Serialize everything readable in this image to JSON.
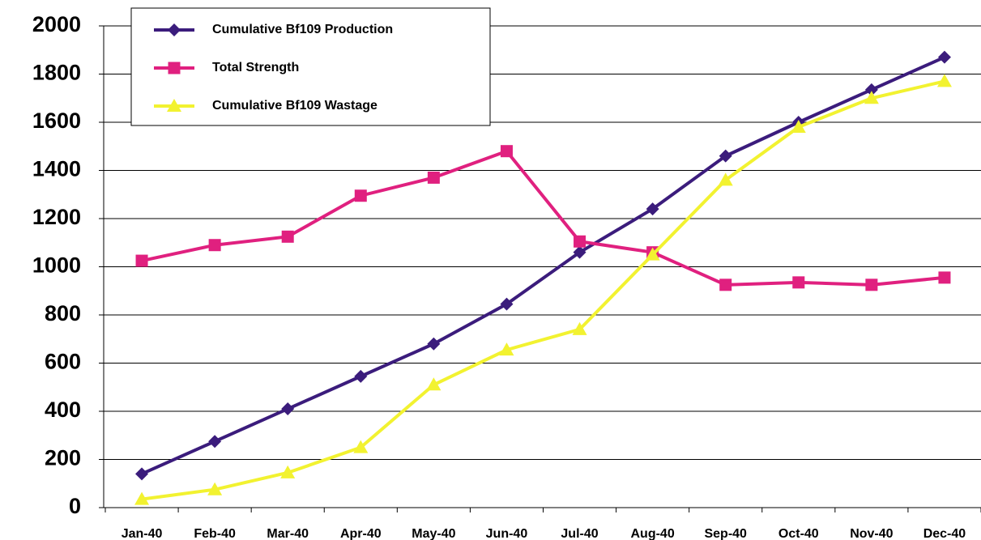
{
  "chart_data": {
    "type": "line",
    "categories": [
      "Jan-40",
      "Feb-40",
      "Mar-40",
      "Apr-40",
      "May-40",
      "Jun-40",
      "Jul-40",
      "Aug-40",
      "Sep-40",
      "Oct-40",
      "Nov-40",
      "Dec-40"
    ],
    "series": [
      {
        "name": "Cumulative Bf109 Production",
        "color": "#3b1c7c",
        "marker": "diamond",
        "values": [
          140,
          275,
          410,
          545,
          680,
          845,
          1060,
          1240,
          1460,
          1600,
          1735,
          1870
        ]
      },
      {
        "name": "Total Strength",
        "color": "#e0207f",
        "marker": "square",
        "values": [
          1025,
          1090,
          1125,
          1295,
          1370,
          1480,
          1105,
          1060,
          925,
          935,
          925,
          955
        ]
      },
      {
        "name": "Cumulative Bf109 Wastage",
        "color": "#f2f230",
        "marker": "triangle",
        "values": [
          35,
          75,
          145,
          250,
          510,
          655,
          740,
          1050,
          1360,
          1580,
          1700,
          1770
        ]
      }
    ],
    "ylim": [
      0,
      2000
    ],
    "yticks": [
      0,
      200,
      400,
      600,
      800,
      1000,
      1200,
      1400,
      1600,
      1800,
      2000
    ],
    "grid": true,
    "legend": "top-left"
  }
}
